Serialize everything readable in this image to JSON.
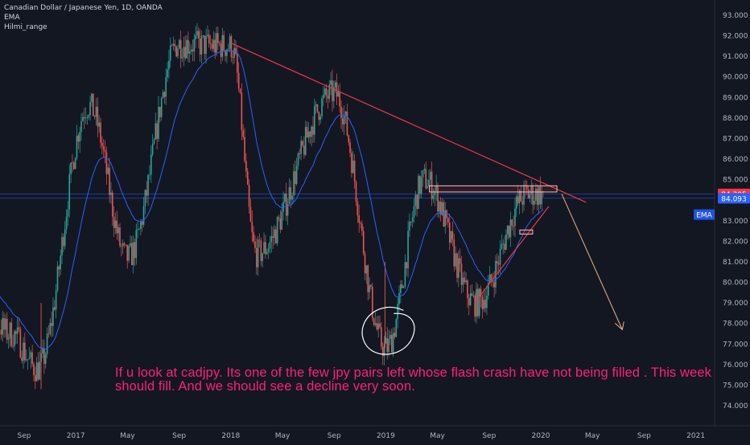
{
  "header": {
    "symbol_line": "Canadian Dollar / Japanese Yen, 1D, OANDA",
    "indicator_1": "EMA",
    "indicator_2": "Hilmi_range"
  },
  "annotation_text": "If u look at cadjpy. Its one of the few jpy pairs left whose flash crash have not being filled . This week should fill. And we should see a decline very soon.",
  "colors": {
    "background": "#131722",
    "axis_text": "#b2b5be",
    "candle_up": "#26a69a",
    "candle_down": "#ef5350",
    "ema_line": "#2962ff",
    "trendline": "#f23645",
    "projection_arrow": "#f0b27a",
    "annotation": "#ff1f7a",
    "price_tag_red": "#f23645",
    "price_tag_blue": "#2962ff",
    "ema_tag": "#1e53e5"
  },
  "chart_data": {
    "type": "candlestick",
    "title": "Canadian Dollar / Japanese Yen, 1D, OANDA",
    "y_axis": {
      "ticks": [
        74,
        75,
        76,
        77,
        78,
        79,
        80,
        81,
        82,
        83,
        84,
        85,
        86,
        87,
        88,
        89,
        90,
        91,
        92,
        93
      ],
      "tick_labels": [
        "74.000",
        "75.000",
        "76.000",
        "77.000",
        "78.000",
        "79.000",
        "80.000",
        "81.000",
        "82.000",
        "83.000",
        "84.000",
        "85.000",
        "86.000",
        "87.000",
        "88.000",
        "89.000",
        "90.000",
        "91.000",
        "92.000",
        "93.000"
      ],
      "range": [
        73.4,
        93.4
      ]
    },
    "x_axis": {
      "tick_labels": [
        "Sep",
        "2017",
        "May",
        "Sep",
        "2018",
        "May",
        "Sep",
        "2019",
        "May",
        "Sep",
        "2020",
        "May",
        "Sep",
        "2021"
      ],
      "tick_dates": [
        "2016-09",
        "2017-01",
        "2017-05",
        "2017-09",
        "2018-01",
        "2018-05",
        "2018-09",
        "2019-01",
        "2019-05",
        "2019-09",
        "2020-01",
        "2020-05",
        "2020-09",
        "2021-01"
      ]
    },
    "price_tags": [
      {
        "label": "84.305",
        "value": 84.305,
        "kind": "last-price"
      },
      {
        "label": "84.093",
        "value": 84.093,
        "kind": "level"
      },
      {
        "label": "EMA",
        "value": 83.3,
        "kind": "indicator"
      }
    ],
    "key_points": [
      {
        "date": "2016-10",
        "value": 75.8,
        "note": "low wick"
      },
      {
        "date": "2017-02",
        "value": 88.6
      },
      {
        "date": "2017-05",
        "value": 81.2
      },
      {
        "date": "2017-09",
        "value": 91.6
      },
      {
        "date": "2018-01",
        "value": 91.5
      },
      {
        "date": "2018-03",
        "value": 81.4
      },
      {
        "date": "2018-09",
        "value": 89.2
      },
      {
        "date": "2019-01",
        "value": 76.8,
        "note": "flash crash wick"
      },
      {
        "date": "2019-04",
        "value": 85.0
      },
      {
        "date": "2019-08",
        "value": 79.0
      },
      {
        "date": "2019-12",
        "value": 84.3
      }
    ],
    "drawings": [
      {
        "kind": "descending-trendline",
        "from": [
          "2018-01",
          91.65
        ],
        "to": [
          "2020-04",
          83.9
        ]
      },
      {
        "kind": "ascending-trendline",
        "from": [
          "2019-08",
          79.1
        ],
        "to": [
          "2020-01",
          83.7
        ]
      },
      {
        "kind": "resistance-box",
        "from": [
          "2019-05",
          84.4
        ],
        "to": [
          "2020-02",
          84.7
        ]
      },
      {
        "kind": "small-box",
        "from": [
          "2019-12",
          82.35
        ],
        "to": [
          "2019-12",
          82.55
        ]
      },
      {
        "kind": "projection-arrow",
        "from": [
          "2020-02",
          84.3
        ],
        "to": [
          "2020-07",
          77.7
        ]
      },
      {
        "kind": "circle",
        "center": [
          "2019-01",
          77.7
        ],
        "note": "hand-drawn circle around flash crash"
      }
    ],
    "grid": false,
    "legend": "none"
  }
}
